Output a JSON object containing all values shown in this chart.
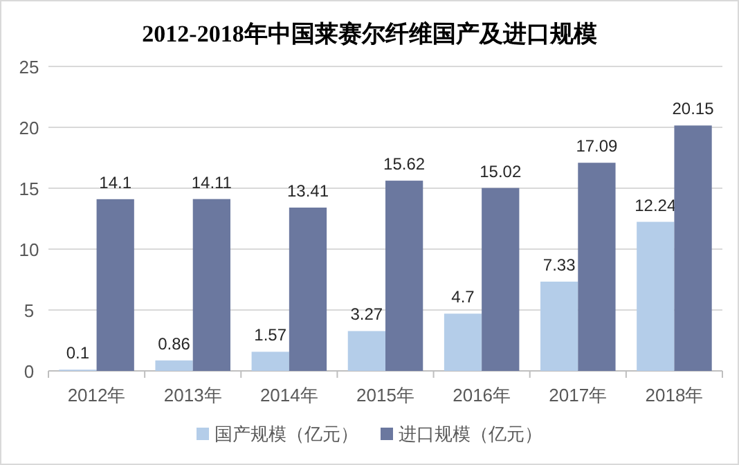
{
  "chart_data": {
    "type": "bar",
    "title": "2012-2018年中国莱赛尔纤维国产及进口规模",
    "categories": [
      "2012年",
      "2013年",
      "2014年",
      "2015年",
      "2016年",
      "2017年",
      "2018年"
    ],
    "series": [
      {
        "name": "国产规模（亿元）",
        "color": "#b4cde9",
        "values": [
          0.1,
          0.86,
          1.57,
          3.27,
          4.7,
          7.33,
          12.24
        ]
      },
      {
        "name": "进口规模（亿元）",
        "color": "#6b789f",
        "values": [
          14.1,
          14.11,
          13.41,
          15.62,
          15.02,
          17.09,
          20.15
        ]
      }
    ],
    "ylim": [
      0,
      25
    ],
    "yticks": [
      0,
      5,
      10,
      15,
      20,
      25
    ],
    "grid": "y",
    "legend": "bottom",
    "data_labels": true
  }
}
